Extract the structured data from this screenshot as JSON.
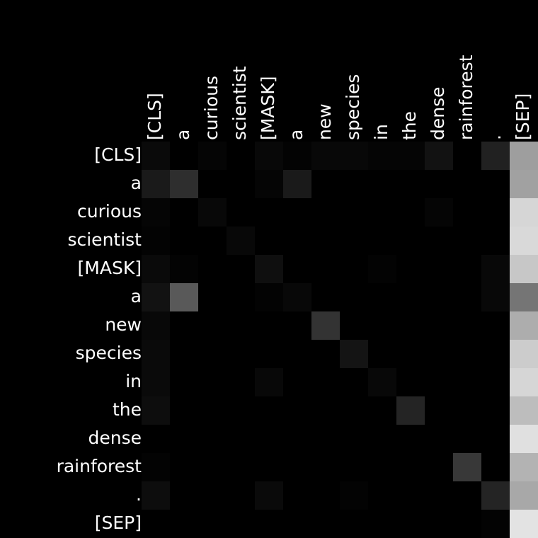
{
  "chart_data": {
    "type": "heatmap",
    "title": "",
    "xlabel": "",
    "ylabel": "",
    "x_tokens": [
      "[CLS]",
      "a",
      "curious",
      "scientist",
      "[MASK]",
      "a",
      "new",
      "species",
      "in",
      "the",
      "dense",
      "rainforest",
      ".",
      "[SEP]"
    ],
    "y_tokens": [
      "[CLS]",
      "a",
      "curious",
      "scientist",
      "[MASK]",
      "a",
      "new",
      "species",
      "in",
      "the",
      "dense",
      "rainforest",
      ".",
      "[SEP]"
    ],
    "colormap": "grayscale",
    "value_range": [
      0,
      1
    ],
    "values": [
      [
        0.04,
        0.0,
        0.02,
        0.0,
        0.03,
        0.01,
        0.03,
        0.03,
        0.02,
        0.02,
        0.07,
        0.0,
        0.13,
        0.62
      ],
      [
        0.1,
        0.18,
        0.0,
        0.0,
        0.02,
        0.1,
        0.0,
        0.0,
        0.0,
        0.0,
        0.0,
        0.0,
        0.0,
        0.63
      ],
      [
        0.02,
        0.0,
        0.03,
        0.0,
        0.0,
        0.0,
        0.0,
        0.0,
        0.0,
        0.0,
        0.02,
        0.0,
        0.0,
        0.84
      ],
      [
        0.01,
        0.0,
        0.0,
        0.03,
        0.0,
        0.0,
        0.0,
        0.0,
        0.0,
        0.0,
        0.0,
        0.0,
        0.0,
        0.85
      ],
      [
        0.04,
        0.01,
        0.0,
        0.0,
        0.06,
        0.0,
        0.0,
        0.0,
        0.01,
        0.0,
        0.0,
        0.0,
        0.03,
        0.78
      ],
      [
        0.07,
        0.35,
        0.0,
        0.0,
        0.01,
        0.03,
        0.0,
        0.0,
        0.0,
        0.0,
        0.0,
        0.0,
        0.03,
        0.46
      ],
      [
        0.03,
        0.0,
        0.0,
        0.0,
        0.0,
        0.0,
        0.2,
        0.0,
        0.0,
        0.0,
        0.0,
        0.0,
        0.0,
        0.68
      ],
      [
        0.04,
        0.0,
        0.0,
        0.0,
        0.0,
        0.0,
        0.0,
        0.08,
        0.0,
        0.0,
        0.0,
        0.0,
        0.0,
        0.8
      ],
      [
        0.04,
        0.0,
        0.0,
        0.0,
        0.03,
        0.0,
        0.0,
        0.0,
        0.03,
        0.0,
        0.0,
        0.0,
        0.0,
        0.84
      ],
      [
        0.05,
        0.0,
        0.0,
        0.0,
        0.0,
        0.0,
        0.0,
        0.0,
        0.0,
        0.14,
        0.0,
        0.0,
        0.0,
        0.74
      ],
      [
        0.0,
        0.0,
        0.0,
        0.0,
        0.0,
        0.0,
        0.0,
        0.0,
        0.0,
        0.0,
        0.0,
        0.0,
        0.0,
        0.88
      ],
      [
        0.01,
        0.0,
        0.0,
        0.0,
        0.0,
        0.0,
        0.0,
        0.0,
        0.0,
        0.0,
        0.0,
        0.22,
        0.0,
        0.7
      ],
      [
        0.05,
        0.0,
        0.0,
        0.0,
        0.04,
        0.0,
        0.0,
        0.01,
        0.0,
        0.0,
        0.0,
        0.0,
        0.14,
        0.66
      ],
      [
        0.0,
        0.0,
        0.0,
        0.0,
        0.0,
        0.0,
        0.0,
        0.0,
        0.0,
        0.0,
        0.0,
        0.0,
        0.01,
        0.89
      ]
    ],
    "grid": false,
    "legend": "none"
  }
}
